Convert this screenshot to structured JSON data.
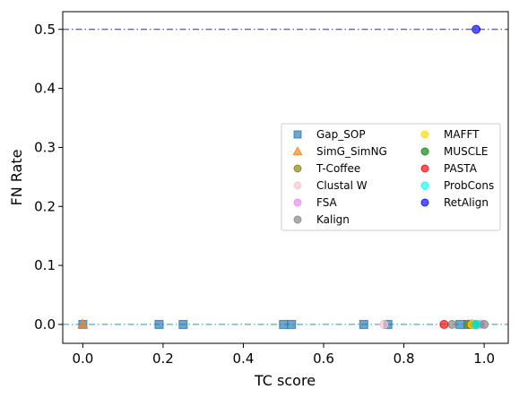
{
  "chart_data": {
    "type": "scatter",
    "title": "",
    "xlabel": "TC score",
    "ylabel": "FN Rate",
    "xlim": [
      -0.05,
      1.06
    ],
    "ylim": [
      -0.032,
      0.53
    ],
    "xticks": [
      0.0,
      0.2,
      0.4,
      0.6,
      0.8,
      1.0
    ],
    "xtick_labels": [
      "0.0",
      "0.2",
      "0.4",
      "0.6",
      "0.8",
      "1.0"
    ],
    "yticks": [
      0.0,
      0.1,
      0.2,
      0.3,
      0.4,
      0.5
    ],
    "ytick_labels": [
      "0.0",
      "0.1",
      "0.2",
      "0.3",
      "0.4",
      "0.5"
    ],
    "grid": false,
    "legend_placement": "center-right",
    "legend_columns": 2,
    "reference_lines": [
      {
        "y": 0.5,
        "color": "#3b2a8c",
        "style": "dashdot"
      },
      {
        "y": 0.0,
        "color": "#1f9fb5",
        "style": "dashdot"
      }
    ],
    "series": [
      {
        "name": "Gap_SOP",
        "marker": "square",
        "color": "#1f77b4",
        "points": [
          [
            0.0,
            0.0
          ],
          [
            0.19,
            0.0
          ],
          [
            0.25,
            0.0
          ],
          [
            0.5,
            0.0
          ],
          [
            0.52,
            0.0
          ],
          [
            0.7,
            0.0
          ],
          [
            0.76,
            0.0
          ],
          [
            0.94,
            0.0
          ],
          [
            0.96,
            0.0
          ],
          [
            0.97,
            0.0
          ]
        ]
      },
      {
        "name": "SimG_SimNG",
        "marker": "triangle",
        "color": "#ff7f0e",
        "points": [
          [
            0.0,
            0.0
          ],
          [
            0.97,
            0.0
          ]
        ]
      },
      {
        "name": "T-Coffee",
        "marker": "circle",
        "color": "#808000",
        "points": [
          [
            0.96,
            0.0
          ]
        ]
      },
      {
        "name": "Clustal W",
        "marker": "circle",
        "color": "#ffc0cb",
        "points": [
          [
            0.75,
            0.0
          ],
          [
            0.98,
            0.0
          ]
        ]
      },
      {
        "name": "FSA",
        "marker": "circle",
        "color": "#ee82ee",
        "points": [
          [
            0.99,
            0.0
          ]
        ]
      },
      {
        "name": "Kalign",
        "marker": "circle",
        "color": "#808080",
        "points": [
          [
            0.92,
            0.0
          ],
          [
            1.0,
            0.0
          ]
        ]
      },
      {
        "name": "MAFFT",
        "marker": "circle",
        "color": "#ffd700",
        "points": [
          [
            0.97,
            0.0
          ]
        ]
      },
      {
        "name": "MUSCLE",
        "marker": "circle",
        "color": "#008000",
        "points": [
          [
            0.98,
            0.0
          ]
        ]
      },
      {
        "name": "PASTA",
        "marker": "circle",
        "color": "#ff0000",
        "points": [
          [
            0.9,
            0.0
          ]
        ]
      },
      {
        "name": "ProbCons",
        "marker": "circle",
        "color": "#00ffff",
        "points": [
          [
            0.98,
            0.0
          ]
        ]
      },
      {
        "name": "RetAlign",
        "marker": "circle",
        "color": "#0000ff",
        "points": [
          [
            0.98,
            0.5
          ]
        ]
      }
    ]
  }
}
